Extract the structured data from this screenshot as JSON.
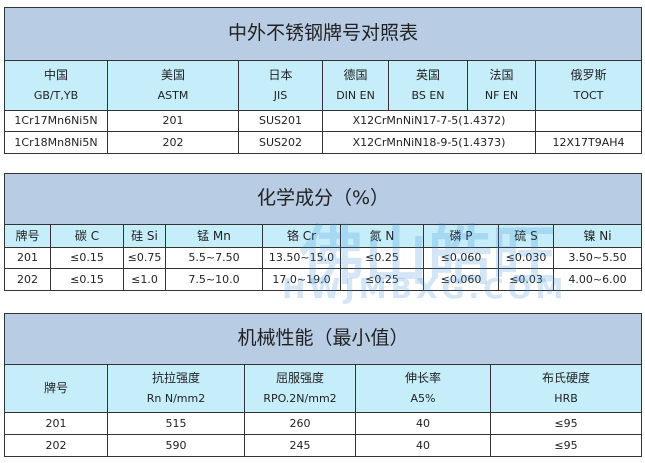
{
  "watermark": {
    "logo_text": "佛山皓旺",
    "site": "HWJMBXG.COM",
    "color": "#3c8cd2"
  },
  "colors": {
    "title_bg": "#b8cce4",
    "header_bg": "#c6eefa"
  },
  "table1": {
    "title": "中外不锈钢牌号对照表",
    "headers": [
      {
        "country": "中国",
        "std": "GB/T,YB"
      },
      {
        "country": "美国",
        "std": "ASTM"
      },
      {
        "country": "日本",
        "std": "JIS"
      },
      {
        "country": "德国",
        "std": "DIN EN"
      },
      {
        "country": "英国",
        "std": "BS EN"
      },
      {
        "country": "法国",
        "std": "NF EN"
      },
      {
        "country": "俄罗斯",
        "std": "TOCT"
      }
    ],
    "rows": [
      {
        "cn": "1Cr17Mn6Ni5N",
        "us": "201",
        "jp": "SUS201",
        "eu": "X12CrMnNiN17-7-5(1.4372)",
        "ru": ""
      },
      {
        "cn": "1Cr18Mn8Ni5N",
        "us": "202",
        "jp": "SUS202",
        "eu": "X12CrMnNiN18-9-5(1.4373)",
        "ru": "12X17T9AH4"
      }
    ]
  },
  "table2": {
    "title": "化学成分（%）",
    "headers": [
      "牌号",
      "碳 C",
      "硅 Si",
      "锰 Mn",
      "铬 Cr",
      "氮 N",
      "磷 P",
      "硫 S",
      "镍 Ni"
    ],
    "rows": [
      [
        "201",
        "≤0.15",
        "≤0.75",
        "5.5~7.50",
        "13.50~15.0",
        "≤0.25",
        "≤0.060",
        "≤0.030",
        "3.50~5.50"
      ],
      [
        "202",
        "≤0.15",
        "≤1.0",
        "7.5~10.0",
        "17.0~19.0",
        "≤0.25",
        "≤0.060",
        "≤0.03",
        "4.00~6.00"
      ]
    ]
  },
  "table3": {
    "title": "机械性能（最小值）",
    "headers": [
      {
        "name": "牌号",
        "unit": ""
      },
      {
        "name": "抗拉强度",
        "unit": "Rn N/mm2"
      },
      {
        "name": "屈服强度",
        "unit": "RPO.2N/mm2"
      },
      {
        "name": "伸长率",
        "unit": "A5%"
      },
      {
        "name": "布氏硬度",
        "unit": "HRB"
      }
    ],
    "rows": [
      [
        "201",
        "515",
        "260",
        "40",
        "≤95"
      ],
      [
        "202",
        "590",
        "245",
        "40",
        "≤95"
      ]
    ]
  }
}
